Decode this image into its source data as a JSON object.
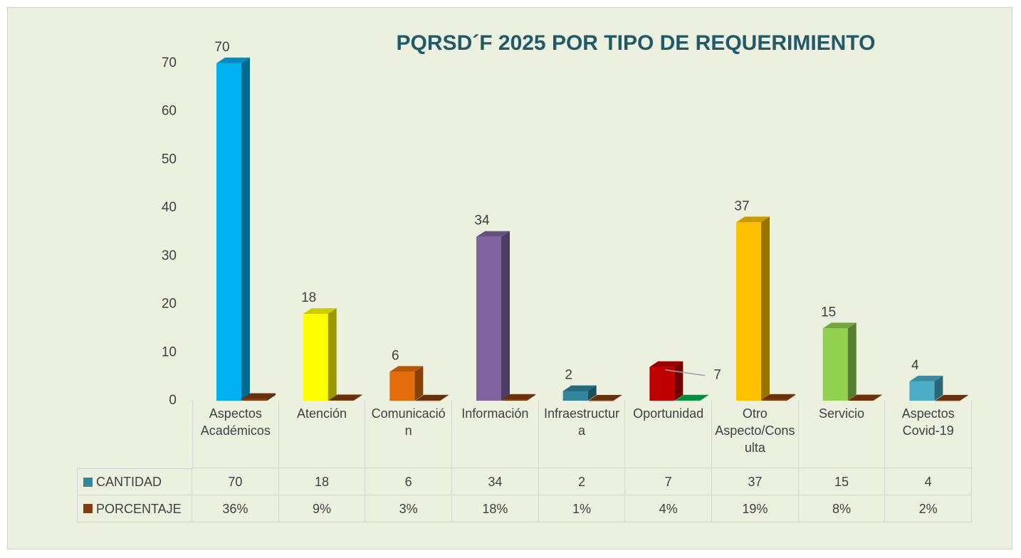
{
  "chart_data": {
    "type": "bar3d",
    "title": "PQRSD´F 2025 POR TIPO DE REQUERIMIENTO",
    "categories": [
      "Aspectos Académicos",
      "Atención",
      "Comunicación",
      "Información",
      "Infraestructura",
      "Oportunidad",
      "Otro Aspecto/Consulta",
      "Servicio",
      "Aspectos Covid-19"
    ],
    "series": [
      {
        "name": "CANTIDAD",
        "color": "#31859c",
        "colors": [
          "#00b0f0",
          "#ffff00",
          "#e46c0a",
          "#8064a2",
          "#31859c",
          "#c00000",
          "#ffc000",
          "#92d050",
          "#4bacc6"
        ],
        "values": [
          70,
          18,
          6,
          34,
          2,
          7,
          37,
          15,
          4
        ]
      },
      {
        "name": "PORCENTAJE",
        "color": "#843c0c",
        "colors": [
          "#843c0c",
          "#843c0c",
          "#843c0c",
          "#843c0c",
          "#843c0c",
          "#00b050",
          "#843c0c",
          "#843c0c",
          "#843c0c"
        ],
        "values": [
          0.36,
          0.09,
          0.03,
          0.18,
          0.01,
          0.04,
          0.19,
          0.08,
          0.02
        ],
        "value_labels": [
          "36%",
          "9%",
          "3%",
          "18%",
          "1%",
          "4%",
          "19%",
          "8%",
          "2%"
        ]
      }
    ],
    "ylim": [
      0,
      75
    ],
    "yticks": [
      0,
      10,
      20,
      30,
      40,
      50,
      60,
      70
    ],
    "grid": false,
    "legend": "table"
  }
}
